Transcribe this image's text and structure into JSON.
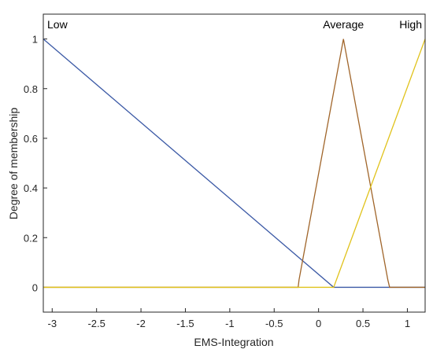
{
  "chart_data": {
    "type": "line",
    "title": "",
    "xlabel": "EMS-Integration",
    "ylabel": "Degree of membership",
    "xlim": [
      -3.1,
      1.2
    ],
    "ylim": [
      -0.1,
      1.1
    ],
    "xticks": [
      -3,
      -2.5,
      -2,
      -1.5,
      -1,
      -0.5,
      0,
      0.5,
      1
    ],
    "yticks": [
      0,
      0.2,
      0.4,
      0.6,
      0.8,
      1
    ],
    "grid": false,
    "series": [
      {
        "name": "Low",
        "color": "#3c5aa6",
        "x": [
          -3.1,
          0.17,
          1.2
        ],
        "y": [
          1,
          0,
          0
        ]
      },
      {
        "name": "Average",
        "color": "#a0652a",
        "x": [
          -3.1,
          -0.23,
          -0.22,
          0.28,
          0.78,
          0.8,
          1.2
        ],
        "y": [
          0,
          0,
          0.03,
          1,
          0.03,
          0,
          0
        ]
      },
      {
        "name": "High",
        "color": "#e0c21a",
        "x": [
          -3.1,
          0.17,
          1.2
        ],
        "y": [
          0,
          0,
          1
        ]
      }
    ]
  }
}
